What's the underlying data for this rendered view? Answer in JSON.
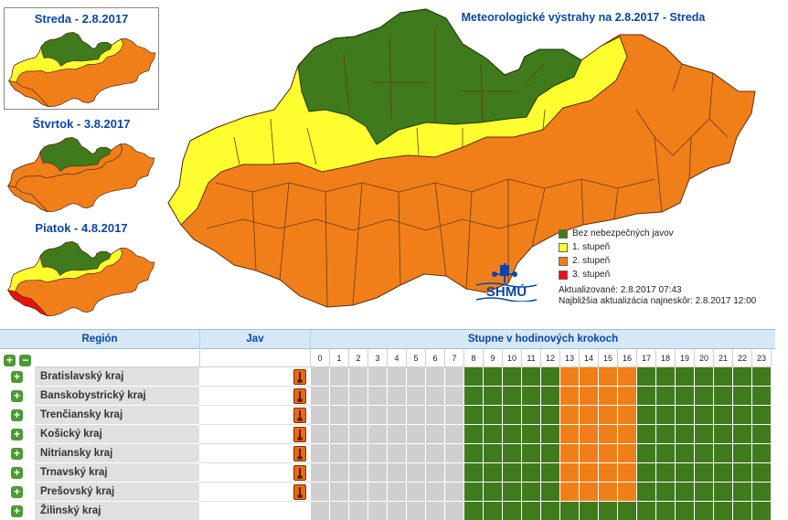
{
  "thumbnails": [
    {
      "title": "Streda - 2.8.2017",
      "top": 8,
      "selected": true,
      "scheme": "a"
    },
    {
      "title": "Štvrtok - 3.8.2017",
      "top": 124,
      "selected": false,
      "scheme": "b"
    },
    {
      "title": "Piatok - 4.8.2017",
      "top": 238,
      "selected": false,
      "scheme": "c"
    }
  ],
  "map": {
    "title": "Meteorologické výstrahy na 2.8.2017 - Streda"
  },
  "legend": [
    {
      "label": "Bez nebezpečných javov",
      "color": "#3f7a1c"
    },
    {
      "label": "1. stupeň",
      "color": "#ffff30"
    },
    {
      "label": "2. stupeň",
      "color": "#f07f1a"
    },
    {
      "label": "3. stupeň",
      "color": "#e81010"
    }
  ],
  "logo_text": "SHMÚ",
  "updated": "Aktualizované: 2.8.2017 07:43",
  "next_update": "Najbližšia aktualizácia najneskôr: 2.8.2017 12:00",
  "table": {
    "header_region": "Región",
    "header_jav": "Jav",
    "header_hours": "Stupne v hodinových krokoch",
    "hours": [
      "0",
      "1",
      "2",
      "3",
      "4",
      "5",
      "6",
      "7",
      "8",
      "9",
      "10",
      "11",
      "12",
      "13",
      "14",
      "15",
      "16",
      "17",
      "18",
      "19",
      "20",
      "21",
      "22",
      "23"
    ],
    "colors": {
      "gray": "#cfcfcf",
      "green": "#3f7a1c",
      "orange": "#f07f1a"
    },
    "rows": [
      {
        "name": "Bratislavský kraj",
        "thermo": true,
        "levels": "ggggggggGGGGGOOOOGGGGGGG"
      },
      {
        "name": "Banskobystrický kraj",
        "thermo": true,
        "levels": "ggggggggGGGGGOOOOGGGGGGG"
      },
      {
        "name": "Trenčiansky kraj",
        "thermo": true,
        "levels": "ggggggggGGGGGOOOOGGGGGGG"
      },
      {
        "name": "Košický kraj",
        "thermo": true,
        "levels": "ggggggggGGGGGOOOOGGGGGGG"
      },
      {
        "name": "Nitriansky kraj",
        "thermo": true,
        "levels": "ggggggggGGGGGOOOOGGGGGGG"
      },
      {
        "name": "Trnavský kraj",
        "thermo": true,
        "levels": "ggggggggGGGGGOOOOGGGGGGG"
      },
      {
        "name": "Prešovský kraj",
        "thermo": true,
        "levels": "ggggggggGGGGGOOOOGGGGGGG"
      },
      {
        "name": "Žilinský kraj",
        "thermo": false,
        "levels": "ggggggggGGGGGGGGGGGGGGGG"
      }
    ]
  }
}
